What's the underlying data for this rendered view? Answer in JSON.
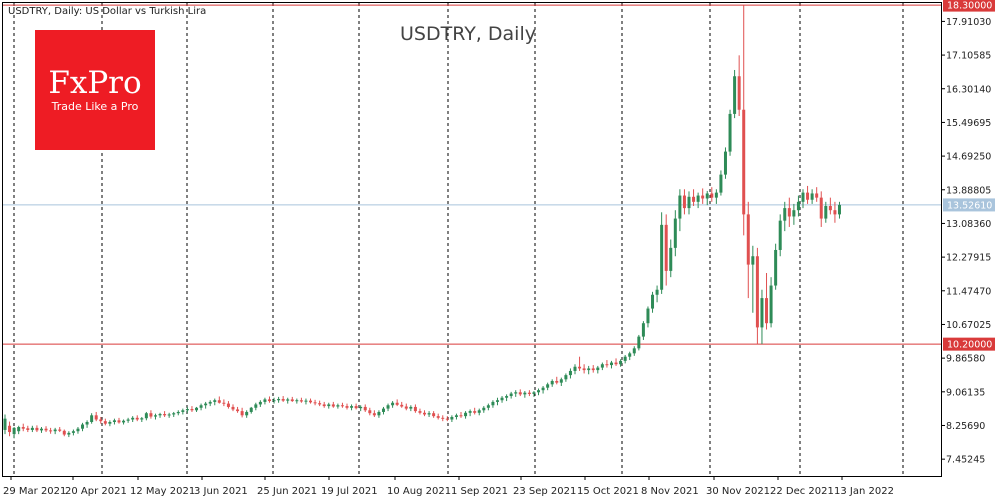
{
  "header": {
    "symbol_info": "USDTRY, Daily:  US Dollar vs Turkish Lira"
  },
  "watermark": {
    "title": "USDTRY, Daily"
  },
  "logo": {
    "brand": "FxPro",
    "tagline": "Trade Like a Pro",
    "color": "#ee1c24"
  },
  "colors": {
    "up": "#2e8b57",
    "down": "#e05050",
    "level_line": "#d93a3a",
    "price_line": "#a9c4dc",
    "grid": "#000000",
    "text": "#222222"
  },
  "chart_data": {
    "type": "candlestick",
    "title": "USDTRY, Daily",
    "x_labels": [
      "29 Mar 2021",
      "20 Apr 2021",
      "12 May 2021",
      "3 Jun 2021",
      "25 Jun 2021",
      "19 Jul 2021",
      "10 Aug 2021",
      "1 Sep 2021",
      "23 Sep 2021",
      "15 Oct 2021",
      "8 Nov 2021",
      "30 Nov 2021",
      "22 Dec 2021",
      "13 Jan 2022"
    ],
    "y_ticks": [
      "17.91030",
      "17.10585",
      "16.30140",
      "15.49695",
      "14.69250",
      "13.88805",
      "13.08360",
      "12.27915",
      "11.47470",
      "10.67025",
      "9.86580",
      "9.06135",
      "8.25690",
      "7.45245"
    ],
    "ylim": [
      7.05,
      18.35
    ],
    "levels": [
      {
        "value": 18.3,
        "label": "18.30000"
      },
      {
        "value": 10.2,
        "label": "10.20000"
      }
    ],
    "current_price": {
      "value": 13.5261,
      "label": "13.52610"
    },
    "grid": "vertical-dashed",
    "candles": [
      {
        "o": 8.15,
        "h": 8.52,
        "l": 8.05,
        "c": 8.42
      },
      {
        "o": 8.25,
        "h": 8.35,
        "l": 8.0,
        "c": 8.1
      },
      {
        "o": 8.05,
        "h": 8.22,
        "l": 7.95,
        "c": 8.2
      },
      {
        "o": 8.12,
        "h": 8.25,
        "l": 8.05,
        "c": 8.22
      },
      {
        "o": 8.22,
        "h": 8.3,
        "l": 8.12,
        "c": 8.18
      },
      {
        "o": 8.19,
        "h": 8.25,
        "l": 8.1,
        "c": 8.15
      },
      {
        "o": 8.15,
        "h": 8.25,
        "l": 8.1,
        "c": 8.2
      },
      {
        "o": 8.2,
        "h": 8.26,
        "l": 8.1,
        "c": 8.14
      },
      {
        "o": 8.14,
        "h": 8.22,
        "l": 8.08,
        "c": 8.18
      },
      {
        "o": 8.18,
        "h": 8.24,
        "l": 8.1,
        "c": 8.14
      },
      {
        "o": 8.14,
        "h": 8.2,
        "l": 8.06,
        "c": 8.12
      },
      {
        "o": 8.12,
        "h": 8.2,
        "l": 8.05,
        "c": 8.16
      },
      {
        "o": 8.16,
        "h": 8.22,
        "l": 8.1,
        "c": 8.13
      },
      {
        "o": 8.13,
        "h": 8.16,
        "l": 8.0,
        "c": 8.04
      },
      {
        "o": 8.04,
        "h": 8.12,
        "l": 7.98,
        "c": 8.08
      },
      {
        "o": 8.08,
        "h": 8.16,
        "l": 8.02,
        "c": 8.12
      },
      {
        "o": 8.12,
        "h": 8.22,
        "l": 8.06,
        "c": 8.18
      },
      {
        "o": 8.18,
        "h": 8.32,
        "l": 8.12,
        "c": 8.28
      },
      {
        "o": 8.28,
        "h": 8.38,
        "l": 8.2,
        "c": 8.34
      },
      {
        "o": 8.34,
        "h": 8.55,
        "l": 8.3,
        "c": 8.5
      },
      {
        "o": 8.5,
        "h": 8.58,
        "l": 8.36,
        "c": 8.4
      },
      {
        "o": 8.4,
        "h": 8.46,
        "l": 8.3,
        "c": 8.36
      },
      {
        "o": 8.36,
        "h": 8.42,
        "l": 8.26,
        "c": 8.3
      },
      {
        "o": 8.3,
        "h": 8.38,
        "l": 8.24,
        "c": 8.34
      },
      {
        "o": 8.34,
        "h": 8.42,
        "l": 8.28,
        "c": 8.38
      },
      {
        "o": 8.38,
        "h": 8.44,
        "l": 8.3,
        "c": 8.33
      },
      {
        "o": 8.33,
        "h": 8.4,
        "l": 8.28,
        "c": 8.37
      },
      {
        "o": 8.37,
        "h": 8.44,
        "l": 8.32,
        "c": 8.4
      },
      {
        "o": 8.4,
        "h": 8.48,
        "l": 8.34,
        "c": 8.44
      },
      {
        "o": 8.44,
        "h": 8.5,
        "l": 8.36,
        "c": 8.4
      },
      {
        "o": 8.4,
        "h": 8.46,
        "l": 8.34,
        "c": 8.43
      },
      {
        "o": 8.43,
        "h": 8.58,
        "l": 8.38,
        "c": 8.55
      },
      {
        "o": 8.55,
        "h": 8.62,
        "l": 8.42,
        "c": 8.47
      },
      {
        "o": 8.47,
        "h": 8.54,
        "l": 8.4,
        "c": 8.5
      },
      {
        "o": 8.5,
        "h": 8.56,
        "l": 8.44,
        "c": 8.53
      },
      {
        "o": 8.53,
        "h": 8.6,
        "l": 8.46,
        "c": 8.5
      },
      {
        "o": 8.5,
        "h": 8.56,
        "l": 8.44,
        "c": 8.52
      },
      {
        "o": 8.52,
        "h": 8.58,
        "l": 8.46,
        "c": 8.55
      },
      {
        "o": 8.55,
        "h": 8.62,
        "l": 8.5,
        "c": 8.58
      },
      {
        "o": 8.58,
        "h": 8.66,
        "l": 8.52,
        "c": 8.62
      },
      {
        "o": 8.62,
        "h": 8.7,
        "l": 8.56,
        "c": 8.65
      },
      {
        "o": 8.65,
        "h": 8.72,
        "l": 8.58,
        "c": 8.62
      },
      {
        "o": 8.62,
        "h": 8.7,
        "l": 8.58,
        "c": 8.68
      },
      {
        "o": 8.68,
        "h": 8.78,
        "l": 8.62,
        "c": 8.74
      },
      {
        "o": 8.74,
        "h": 8.82,
        "l": 8.66,
        "c": 8.78
      },
      {
        "o": 8.78,
        "h": 8.86,
        "l": 8.72,
        "c": 8.82
      },
      {
        "o": 8.82,
        "h": 8.9,
        "l": 8.74,
        "c": 8.86
      },
      {
        "o": 8.86,
        "h": 8.95,
        "l": 8.78,
        "c": 8.8
      },
      {
        "o": 8.8,
        "h": 8.88,
        "l": 8.72,
        "c": 8.78
      },
      {
        "o": 8.78,
        "h": 8.84,
        "l": 8.66,
        "c": 8.7
      },
      {
        "o": 8.7,
        "h": 8.76,
        "l": 8.6,
        "c": 8.64
      },
      {
        "o": 8.64,
        "h": 8.7,
        "l": 8.56,
        "c": 8.6
      },
      {
        "o": 8.6,
        "h": 8.68,
        "l": 8.45,
        "c": 8.5
      },
      {
        "o": 8.5,
        "h": 8.62,
        "l": 8.44,
        "c": 8.58
      },
      {
        "o": 8.58,
        "h": 8.7,
        "l": 8.54,
        "c": 8.68
      },
      {
        "o": 8.68,
        "h": 8.8,
        "l": 8.62,
        "c": 8.76
      },
      {
        "o": 8.76,
        "h": 8.86,
        "l": 8.7,
        "c": 8.82
      },
      {
        "o": 8.82,
        "h": 8.92,
        "l": 8.76,
        "c": 8.88
      },
      {
        "o": 8.88,
        "h": 8.95,
        "l": 8.8,
        "c": 8.84
      },
      {
        "o": 8.84,
        "h": 8.92,
        "l": 8.78,
        "c": 8.86
      },
      {
        "o": 8.86,
        "h": 8.94,
        "l": 8.8,
        "c": 8.89
      },
      {
        "o": 8.89,
        "h": 8.96,
        "l": 8.82,
        "c": 8.85
      },
      {
        "o": 8.85,
        "h": 8.92,
        "l": 8.78,
        "c": 8.88
      },
      {
        "o": 8.88,
        "h": 8.94,
        "l": 8.82,
        "c": 8.84
      },
      {
        "o": 8.84,
        "h": 8.9,
        "l": 8.78,
        "c": 8.86
      },
      {
        "o": 8.86,
        "h": 8.92,
        "l": 8.8,
        "c": 8.83
      },
      {
        "o": 8.83,
        "h": 8.9,
        "l": 8.76,
        "c": 8.85
      },
      {
        "o": 8.85,
        "h": 8.9,
        "l": 8.78,
        "c": 8.81
      },
      {
        "o": 8.81,
        "h": 8.87,
        "l": 8.74,
        "c": 8.79
      },
      {
        "o": 8.79,
        "h": 8.85,
        "l": 8.72,
        "c": 8.76
      },
      {
        "o": 8.76,
        "h": 8.82,
        "l": 8.68,
        "c": 8.72
      },
      {
        "o": 8.72,
        "h": 8.8,
        "l": 8.66,
        "c": 8.76
      },
      {
        "o": 8.76,
        "h": 8.82,
        "l": 8.68,
        "c": 8.71
      },
      {
        "o": 8.71,
        "h": 8.78,
        "l": 8.66,
        "c": 8.74
      },
      {
        "o": 8.74,
        "h": 8.8,
        "l": 8.68,
        "c": 8.72
      },
      {
        "o": 8.72,
        "h": 8.78,
        "l": 8.64,
        "c": 8.68
      },
      {
        "o": 8.68,
        "h": 8.76,
        "l": 8.62,
        "c": 8.72
      },
      {
        "o": 8.72,
        "h": 8.78,
        "l": 8.64,
        "c": 8.67
      },
      {
        "o": 8.67,
        "h": 8.74,
        "l": 8.6,
        "c": 8.7
      },
      {
        "o": 8.7,
        "h": 8.76,
        "l": 8.58,
        "c": 8.62
      },
      {
        "o": 8.62,
        "h": 8.68,
        "l": 8.5,
        "c": 8.55
      },
      {
        "o": 8.55,
        "h": 8.62,
        "l": 8.46,
        "c": 8.5
      },
      {
        "o": 8.5,
        "h": 8.62,
        "l": 8.44,
        "c": 8.58
      },
      {
        "o": 8.58,
        "h": 8.7,
        "l": 8.52,
        "c": 8.66
      },
      {
        "o": 8.66,
        "h": 8.78,
        "l": 8.6,
        "c": 8.74
      },
      {
        "o": 8.74,
        "h": 8.84,
        "l": 8.68,
        "c": 8.8
      },
      {
        "o": 8.8,
        "h": 8.88,
        "l": 8.72,
        "c": 8.75
      },
      {
        "o": 8.75,
        "h": 8.82,
        "l": 8.68,
        "c": 8.71
      },
      {
        "o": 8.71,
        "h": 8.78,
        "l": 8.62,
        "c": 8.66
      },
      {
        "o": 8.66,
        "h": 8.74,
        "l": 8.6,
        "c": 8.7
      },
      {
        "o": 8.7,
        "h": 8.76,
        "l": 8.56,
        "c": 8.6
      },
      {
        "o": 8.6,
        "h": 8.66,
        "l": 8.52,
        "c": 8.56
      },
      {
        "o": 8.56,
        "h": 8.62,
        "l": 8.48,
        "c": 8.52
      },
      {
        "o": 8.52,
        "h": 8.6,
        "l": 8.46,
        "c": 8.55
      },
      {
        "o": 8.55,
        "h": 8.6,
        "l": 8.44,
        "c": 8.48
      },
      {
        "o": 8.48,
        "h": 8.54,
        "l": 8.4,
        "c": 8.44
      },
      {
        "o": 8.44,
        "h": 8.5,
        "l": 8.36,
        "c": 8.42
      },
      {
        "o": 8.42,
        "h": 8.48,
        "l": 8.36,
        "c": 8.4
      },
      {
        "o": 8.4,
        "h": 8.5,
        "l": 8.34,
        "c": 8.46
      },
      {
        "o": 8.46,
        "h": 8.54,
        "l": 8.4,
        "c": 8.5
      },
      {
        "o": 8.5,
        "h": 8.58,
        "l": 8.44,
        "c": 8.48
      },
      {
        "o": 8.48,
        "h": 8.6,
        "l": 8.42,
        "c": 8.56
      },
      {
        "o": 8.56,
        "h": 8.64,
        "l": 8.48,
        "c": 8.6
      },
      {
        "o": 8.6,
        "h": 8.68,
        "l": 8.52,
        "c": 8.56
      },
      {
        "o": 8.56,
        "h": 8.66,
        "l": 8.5,
        "c": 8.62
      },
      {
        "o": 8.62,
        "h": 8.72,
        "l": 8.56,
        "c": 8.68
      },
      {
        "o": 8.68,
        "h": 8.78,
        "l": 8.62,
        "c": 8.74
      },
      {
        "o": 8.74,
        "h": 8.86,
        "l": 8.68,
        "c": 8.82
      },
      {
        "o": 8.82,
        "h": 8.92,
        "l": 8.74,
        "c": 8.86
      },
      {
        "o": 8.86,
        "h": 8.96,
        "l": 8.8,
        "c": 8.92
      },
      {
        "o": 8.92,
        "h": 9.0,
        "l": 8.84,
        "c": 8.96
      },
      {
        "o": 8.96,
        "h": 9.06,
        "l": 8.9,
        "c": 9.02
      },
      {
        "o": 9.02,
        "h": 9.1,
        "l": 8.94,
        "c": 9.05
      },
      {
        "o": 9.05,
        "h": 9.12,
        "l": 8.96,
        "c": 9.0
      },
      {
        "o": 9.0,
        "h": 9.08,
        "l": 8.92,
        "c": 9.04
      },
      {
        "o": 9.04,
        "h": 9.1,
        "l": 8.96,
        "c": 9.01
      },
      {
        "o": 9.01,
        "h": 9.08,
        "l": 8.94,
        "c": 9.05
      },
      {
        "o": 9.05,
        "h": 9.14,
        "l": 8.98,
        "c": 9.1
      },
      {
        "o": 9.1,
        "h": 9.2,
        "l": 9.02,
        "c": 9.16
      },
      {
        "o": 9.16,
        "h": 9.28,
        "l": 9.1,
        "c": 9.24
      },
      {
        "o": 9.24,
        "h": 9.36,
        "l": 9.18,
        "c": 9.32
      },
      {
        "o": 9.32,
        "h": 9.42,
        "l": 9.24,
        "c": 9.28
      },
      {
        "o": 9.28,
        "h": 9.4,
        "l": 9.2,
        "c": 9.36
      },
      {
        "o": 9.36,
        "h": 9.5,
        "l": 9.3,
        "c": 9.46
      },
      {
        "o": 9.46,
        "h": 9.62,
        "l": 9.38,
        "c": 9.56
      },
      {
        "o": 9.56,
        "h": 9.72,
        "l": 9.48,
        "c": 9.66
      },
      {
        "o": 9.66,
        "h": 9.9,
        "l": 9.56,
        "c": 9.62
      },
      {
        "o": 9.62,
        "h": 9.72,
        "l": 9.5,
        "c": 9.58
      },
      {
        "o": 9.58,
        "h": 9.68,
        "l": 9.48,
        "c": 9.62
      },
      {
        "o": 9.62,
        "h": 9.7,
        "l": 9.52,
        "c": 9.58
      },
      {
        "o": 9.58,
        "h": 9.68,
        "l": 9.5,
        "c": 9.64
      },
      {
        "o": 9.64,
        "h": 9.76,
        "l": 9.58,
        "c": 9.72
      },
      {
        "o": 9.72,
        "h": 9.82,
        "l": 9.64,
        "c": 9.7
      },
      {
        "o": 9.7,
        "h": 9.8,
        "l": 9.62,
        "c": 9.76
      },
      {
        "o": 9.76,
        "h": 9.86,
        "l": 9.68,
        "c": 9.72
      },
      {
        "o": 9.72,
        "h": 9.84,
        "l": 9.66,
        "c": 9.8
      },
      {
        "o": 9.8,
        "h": 9.94,
        "l": 9.74,
        "c": 9.9
      },
      {
        "o": 9.9,
        "h": 10.02,
        "l": 9.82,
        "c": 9.98
      },
      {
        "o": 9.98,
        "h": 10.15,
        "l": 9.92,
        "c": 10.1
      },
      {
        "o": 10.1,
        "h": 10.42,
        "l": 10.05,
        "c": 10.38
      },
      {
        "o": 10.38,
        "h": 10.75,
        "l": 10.3,
        "c": 10.7
      },
      {
        "o": 10.7,
        "h": 11.1,
        "l": 10.6,
        "c": 11.05
      },
      {
        "o": 11.05,
        "h": 11.45,
        "l": 10.95,
        "c": 11.38
      },
      {
        "o": 11.38,
        "h": 11.6,
        "l": 11.2,
        "c": 11.5
      },
      {
        "o": 11.5,
        "h": 13.35,
        "l": 11.4,
        "c": 13.05
      },
      {
        "o": 13.05,
        "h": 13.3,
        "l": 11.6,
        "c": 11.95
      },
      {
        "o": 11.95,
        "h": 12.7,
        "l": 11.8,
        "c": 12.5
      },
      {
        "o": 12.5,
        "h": 13.4,
        "l": 12.3,
        "c": 13.2
      },
      {
        "o": 13.2,
        "h": 13.9,
        "l": 12.9,
        "c": 13.75
      },
      {
        "o": 13.75,
        "h": 13.9,
        "l": 13.3,
        "c": 13.45
      },
      {
        "o": 13.45,
        "h": 13.85,
        "l": 13.3,
        "c": 13.72
      },
      {
        "o": 13.72,
        "h": 13.9,
        "l": 13.5,
        "c": 13.6
      },
      {
        "o": 13.6,
        "h": 13.82,
        "l": 13.45,
        "c": 13.75
      },
      {
        "o": 13.75,
        "h": 13.92,
        "l": 13.55,
        "c": 13.68
      },
      {
        "o": 13.68,
        "h": 13.86,
        "l": 13.52,
        "c": 13.8
      },
      {
        "o": 13.8,
        "h": 13.95,
        "l": 13.6,
        "c": 13.7
      },
      {
        "o": 13.7,
        "h": 13.9,
        "l": 13.55,
        "c": 13.82
      },
      {
        "o": 13.82,
        "h": 14.35,
        "l": 13.75,
        "c": 14.25
      },
      {
        "o": 14.25,
        "h": 14.9,
        "l": 14.15,
        "c": 14.8
      },
      {
        "o": 14.8,
        "h": 15.8,
        "l": 14.7,
        "c": 15.7
      },
      {
        "o": 15.7,
        "h": 16.75,
        "l": 15.6,
        "c": 16.6
      },
      {
        "o": 16.6,
        "h": 17.1,
        "l": 15.65,
        "c": 15.8
      },
      {
        "o": 15.8,
        "h": 18.3,
        "l": 12.8,
        "c": 13.3
      },
      {
        "o": 13.3,
        "h": 13.6,
        "l": 11.3,
        "c": 12.1
      },
      {
        "o": 12.1,
        "h": 12.55,
        "l": 10.95,
        "c": 12.3
      },
      {
        "o": 12.3,
        "h": 12.5,
        "l": 10.2,
        "c": 10.6
      },
      {
        "o": 10.6,
        "h": 11.5,
        "l": 10.2,
        "c": 11.3
      },
      {
        "o": 11.3,
        "h": 11.9,
        "l": 10.55,
        "c": 10.7
      },
      {
        "o": 10.7,
        "h": 11.8,
        "l": 10.6,
        "c": 11.6
      },
      {
        "o": 11.6,
        "h": 12.6,
        "l": 11.5,
        "c": 12.45
      },
      {
        "o": 12.45,
        "h": 13.3,
        "l": 12.3,
        "c": 13.15
      },
      {
        "o": 13.15,
        "h": 13.6,
        "l": 12.9,
        "c": 13.45
      },
      {
        "o": 13.45,
        "h": 13.7,
        "l": 13.0,
        "c": 13.25
      },
      {
        "o": 13.25,
        "h": 13.55,
        "l": 13.05,
        "c": 13.4
      },
      {
        "o": 13.4,
        "h": 13.75,
        "l": 13.25,
        "c": 13.6
      },
      {
        "o": 13.6,
        "h": 13.9,
        "l": 13.45,
        "c": 13.82
      },
      {
        "o": 13.82,
        "h": 13.98,
        "l": 13.55,
        "c": 13.65
      },
      {
        "o": 13.65,
        "h": 13.9,
        "l": 13.55,
        "c": 13.8
      },
      {
        "o": 13.8,
        "h": 13.95,
        "l": 13.6,
        "c": 13.7
      },
      {
        "o": 13.7,
        "h": 13.85,
        "l": 13.0,
        "c": 13.2
      },
      {
        "o": 13.2,
        "h": 13.6,
        "l": 13.1,
        "c": 13.5
      },
      {
        "o": 13.5,
        "h": 13.7,
        "l": 13.3,
        "c": 13.4
      },
      {
        "o": 13.4,
        "h": 13.6,
        "l": 13.1,
        "c": 13.3
      },
      {
        "o": 13.3,
        "h": 13.6,
        "l": 13.2,
        "c": 13.5261
      }
    ]
  }
}
